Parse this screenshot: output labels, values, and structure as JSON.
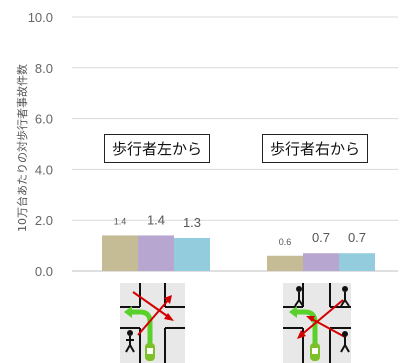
{
  "chart_data": {
    "type": "bar",
    "ylabel": "10万台あたりの対歩行者事故件数",
    "ylim": [
      0,
      10
    ],
    "yticks": [
      "0.0",
      "2.0",
      "4.0",
      "6.0",
      "8.0",
      "10.0"
    ],
    "grid": true,
    "legend": "none",
    "categories": [
      "歩行者左から",
      "歩行者右から"
    ],
    "series": [
      {
        "values": [
          1.4,
          0.6
        ],
        "labels": [
          "1.4",
          "0.6"
        ],
        "color": "#c5bb95"
      },
      {
        "values": [
          1.4,
          0.7
        ],
        "labels": [
          "1.4",
          "0.7"
        ],
        "color": "#b7a6cf"
      },
      {
        "values": [
          1.3,
          0.7
        ],
        "labels": [
          "1.3",
          "0.7"
        ],
        "color": "#93cddd"
      }
    ]
  },
  "icons": {
    "left_scenario": "intersection-pedestrian-from-left-icon",
    "right_scenario": "intersection-pedestrian-from-right-icon",
    "arrow_color": "#d40000",
    "turn_arrow_color": "#5ad02a",
    "car_color": "#7ec02a"
  }
}
